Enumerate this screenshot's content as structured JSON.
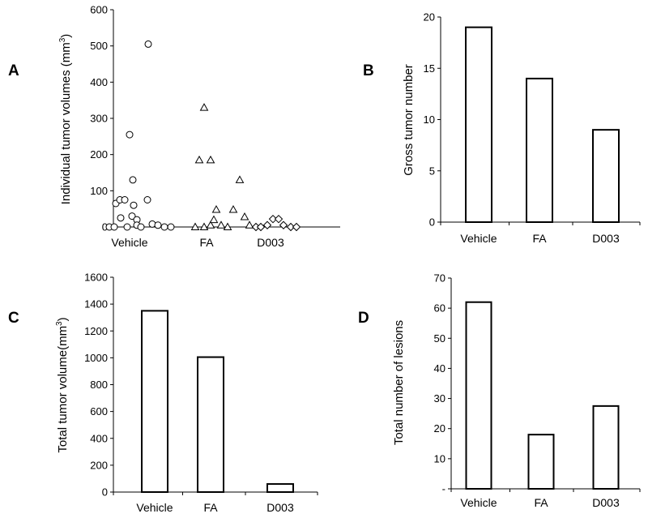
{
  "chart_data": [
    {
      "panel": "A",
      "type": "scatter",
      "ylabel": "Individual tumor volumes (mm",
      "ylabel_sup": "3",
      "ylabel_end": ")",
      "categories": [
        "Vehicle",
        "FA",
        "D003"
      ],
      "ylim": [
        0,
        600
      ],
      "yticks": [
        "0",
        "100",
        "200",
        "300",
        "400",
        "500",
        "600"
      ],
      "markers": [
        "circle",
        "triangle",
        "diamond"
      ],
      "series": [
        {
          "category": "Vehicle",
          "points": [
            {
              "x": -0.25,
              "y": 0
            },
            {
              "x": -0.19,
              "y": 0
            },
            {
              "x": -0.17,
              "y": 65
            },
            {
              "x": -0.12,
              "y": 75
            },
            {
              "x": -0.11,
              "y": 25
            },
            {
              "x": -0.06,
              "y": 75
            },
            {
              "x": -0.03,
              "y": 0
            },
            {
              "x": 0.0,
              "y": 255
            },
            {
              "x": 0.03,
              "y": 30
            },
            {
              "x": 0.04,
              "y": 130
            },
            {
              "x": 0.05,
              "y": 60
            },
            {
              "x": 0.09,
              "y": 20
            },
            {
              "x": 0.09,
              "y": 5
            },
            {
              "x": 0.14,
              "y": 0
            },
            {
              "x": 0.22,
              "y": 75
            },
            {
              "x": 0.23,
              "y": 505
            },
            {
              "x": 0.28,
              "y": 8
            },
            {
              "x": 0.35,
              "y": 5
            },
            {
              "x": 0.43,
              "y": 0
            },
            {
              "x": 0.51,
              "y": 0
            }
          ]
        },
        {
          "category": "FA",
          "points": [
            {
              "x": -0.14,
              "y": 0
            },
            {
              "x": -0.09,
              "y": 185
            },
            {
              "x": -0.03,
              "y": 330
            },
            {
              "x": -0.03,
              "y": 0
            },
            {
              "x": 0.05,
              "y": 185
            },
            {
              "x": 0.05,
              "y": 5
            },
            {
              "x": 0.09,
              "y": 20
            },
            {
              "x": 0.12,
              "y": 48
            },
            {
              "x": 0.18,
              "y": 5
            },
            {
              "x": 0.26,
              "y": 0
            },
            {
              "x": 0.33,
              "y": 48
            },
            {
              "x": 0.41,
              "y": 130
            },
            {
              "x": 0.47,
              "y": 28
            },
            {
              "x": 0.53,
              "y": 5
            }
          ]
        },
        {
          "category": "D003",
          "points": [
            {
              "x": -0.18,
              "y": 0
            },
            {
              "x": -0.12,
              "y": 0
            },
            {
              "x": -0.04,
              "y": 5
            },
            {
              "x": 0.03,
              "y": 22
            },
            {
              "x": 0.1,
              "y": 22
            },
            {
              "x": 0.16,
              "y": 5
            },
            {
              "x": 0.25,
              "y": 0
            },
            {
              "x": 0.32,
              "y": 0
            }
          ]
        }
      ]
    },
    {
      "panel": "B",
      "type": "bar",
      "ylabel": "Gross tumor number",
      "categories": [
        "Vehicle",
        "FA",
        "D003"
      ],
      "values": [
        19,
        14,
        9
      ],
      "ylim": [
        0,
        20
      ],
      "yticks": [
        "0",
        "5",
        "10",
        "15",
        "20"
      ]
    },
    {
      "panel": "C",
      "type": "bar",
      "ylabel": "Total tumor volume(mm",
      "ylabel_sup": "3",
      "ylabel_end": ")",
      "categories": [
        "Vehicle",
        "FA",
        "D003"
      ],
      "values": [
        1350,
        1005,
        60
      ],
      "ylim": [
        0,
        1600
      ],
      "yticks": [
        "0",
        "200",
        "400",
        "600",
        "800",
        "1000",
        "1200",
        "1400",
        "1600"
      ]
    },
    {
      "panel": "D",
      "type": "bar",
      "ylabel": "Total number of lesions",
      "categories": [
        "Vehicle",
        "FA",
        "D003"
      ],
      "values": [
        62,
        18,
        27.5
      ],
      "ylim": [
        0,
        70
      ],
      "yticks": [
        "-",
        "10",
        "20",
        "30",
        "40",
        "50",
        "60",
        "70"
      ]
    }
  ]
}
